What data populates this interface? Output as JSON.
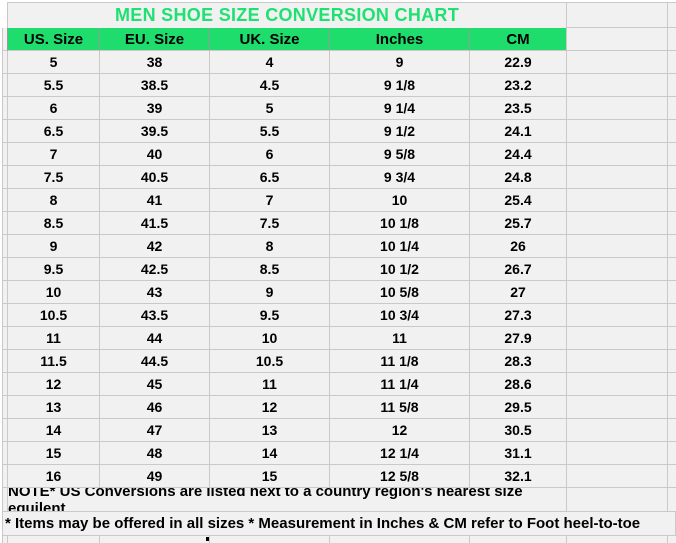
{
  "chart_data": {
    "type": "table",
    "title": "MEN SHOE SIZE CONVERSION CHART",
    "columns": [
      "US. Size",
      "EU. Size",
      "UK. Size",
      "Inches",
      "CM"
    ],
    "rows": [
      [
        "5",
        "38",
        "4",
        "9",
        "22.9"
      ],
      [
        "5.5",
        "38.5",
        "4.5",
        "9 1/8",
        "23.2"
      ],
      [
        "6",
        "39",
        "5",
        "9 1/4",
        "23.5"
      ],
      [
        "6.5",
        "39.5",
        "5.5",
        "9 1/2",
        "24.1"
      ],
      [
        "7",
        "40",
        "6",
        "9 5/8",
        "24.4"
      ],
      [
        "7.5",
        "40.5",
        "6.5",
        "9 3/4",
        "24.8"
      ],
      [
        "8",
        "41",
        "7",
        "10",
        "25.4"
      ],
      [
        "8.5",
        "41.5",
        "7.5",
        "10 1/8",
        "25.7"
      ],
      [
        "9",
        "42",
        "8",
        "10 1/4",
        "26"
      ],
      [
        "9.5",
        "42.5",
        "8.5",
        "10 1/2",
        "26.7"
      ],
      [
        "10",
        "43",
        "9",
        "10 5/8",
        "27"
      ],
      [
        "10.5",
        "43.5",
        "9.5",
        "10 3/4",
        "27.3"
      ],
      [
        "11",
        "44",
        "10",
        "11",
        "27.9"
      ],
      [
        "11.5",
        "44.5",
        "10.5",
        "11 1/8",
        "28.3"
      ],
      [
        "12",
        "45",
        "11",
        "11 1/4",
        "28.6"
      ],
      [
        "13",
        "46",
        "12",
        "11 5/8",
        "29.5"
      ],
      [
        "14",
        "47",
        "13",
        "12",
        "30.5"
      ],
      [
        "15",
        "48",
        "14",
        "12 1/4",
        "31.1"
      ],
      [
        "16",
        "49",
        "15",
        "12 5/8",
        "32.1"
      ]
    ],
    "notes": [
      "NOTE* US Conversions are listed next to a country region's nearest size equilent",
      "* Items may be offered in all sizes * Measurement in Inches & CM refer to Foot heel-to-toe"
    ],
    "layout_hints": {
      "grid": "on",
      "header_position": "top"
    }
  },
  "colors": {
    "header_background": "#1edd6d",
    "title_text": "#1fe171",
    "grid_line": "#c9c9c9",
    "cell_background": "#f1f1f1",
    "body_text": "#000000"
  }
}
